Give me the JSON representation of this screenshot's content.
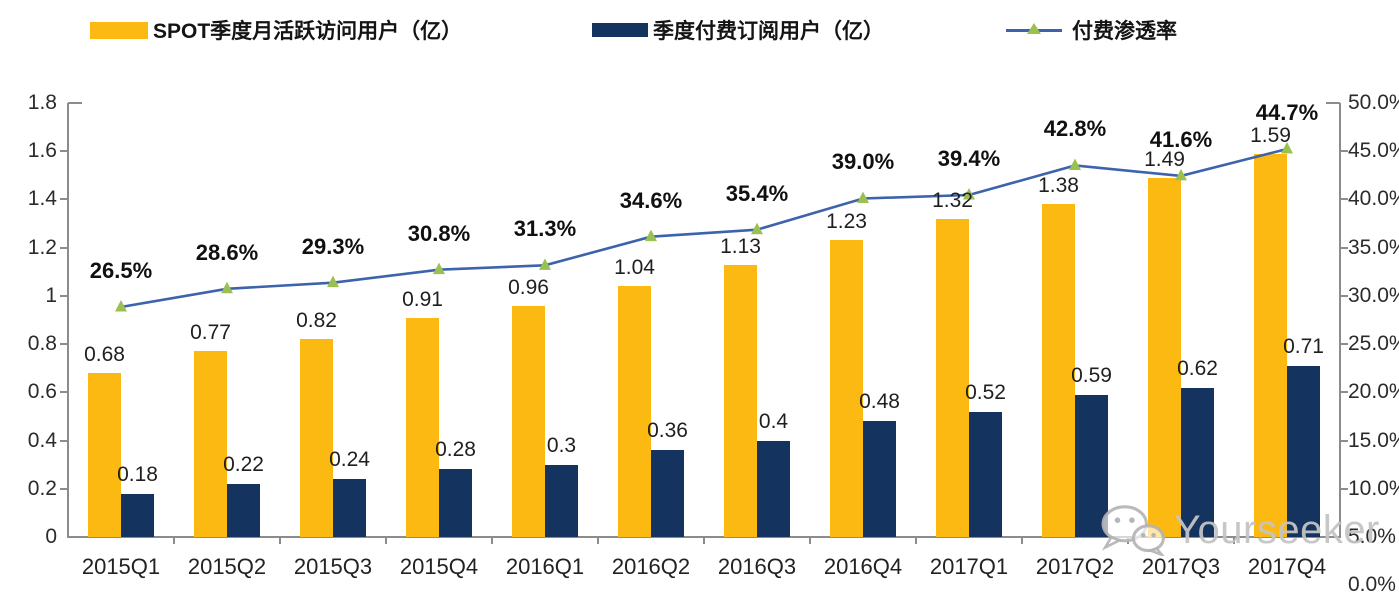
{
  "chart_data": {
    "type": "bar+line",
    "categories": [
      "2015Q1",
      "2015Q2",
      "2015Q3",
      "2015Q4",
      "2016Q1",
      "2016Q2",
      "2016Q3",
      "2016Q4",
      "2017Q1",
      "2017Q2",
      "2017Q3",
      "2017Q4"
    ],
    "series": [
      {
        "name": "SPOT季度月活跃访问用户（亿）",
        "type": "bar",
        "axis": "left",
        "color": "#FCB912",
        "values": [
          0.68,
          0.77,
          0.82,
          0.91,
          0.96,
          1.04,
          1.13,
          1.23,
          1.32,
          1.38,
          1.49,
          1.59
        ],
        "labels": [
          "0.68",
          "0.77",
          "0.82",
          "0.91",
          "0.96",
          "1.04",
          "1.13",
          "1.23",
          "1.32",
          "1.38",
          "1.49",
          "1.59"
        ]
      },
      {
        "name": "季度付费订阅用户（亿）",
        "type": "bar",
        "axis": "left",
        "color": "#15335F",
        "values": [
          0.18,
          0.22,
          0.24,
          0.28,
          0.3,
          0.36,
          0.4,
          0.48,
          0.52,
          0.59,
          0.62,
          0.71
        ],
        "labels": [
          "0.18",
          "0.22",
          "0.24",
          "0.28",
          "0.3",
          "0.36",
          "0.4",
          "0.48",
          "0.52",
          "0.59",
          "0.62",
          "0.71"
        ]
      },
      {
        "name": "付费渗透率",
        "type": "line",
        "axis": "right",
        "color": "#3D63AC",
        "marker": "triangle",
        "marker_color": "#9BC052",
        "values_percent": [
          26.5,
          28.6,
          29.3,
          30.8,
          31.3,
          34.6,
          35.4,
          39.0,
          39.4,
          42.8,
          41.6,
          44.7
        ],
        "labels": [
          "26.5%",
          "28.6%",
          "29.3%",
          "30.8%",
          "31.3%",
          "34.6%",
          "35.4%",
          "39.0%",
          "39.4%",
          "42.8%",
          "41.6%",
          "44.7%"
        ]
      }
    ],
    "left_axis": {
      "min": 0,
      "max": 1.8,
      "ticks": [
        "1.8",
        "1.6",
        "1.4",
        "1.2",
        "1",
        "0.8",
        "0.6",
        "0.4",
        "0.2",
        "0"
      ]
    },
    "right_axis": {
      "min": 0,
      "max": 50,
      "ticks": [
        "50.0%",
        "45.0%",
        "40.0%",
        "35.0%",
        "30.0%",
        "25.0%",
        "20.0%",
        "15.0%",
        "10.0%",
        "5.0%",
        "0.0%"
      ]
    },
    "grid": false,
    "legend_position": "top",
    "title": "",
    "xlabel": "",
    "ylabel": ""
  },
  "watermark": {
    "text": "Yourseeker",
    "icon": "wechat-icon"
  }
}
